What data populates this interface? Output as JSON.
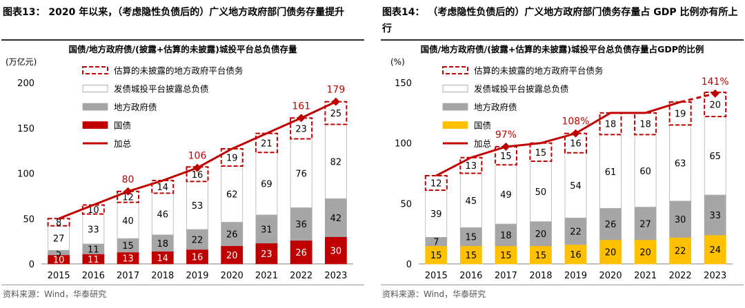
{
  "left": {
    "figure_title": "图表13：  2020 年以来，（考虑隐性负债后的）广义地方政府部门债务存量提升",
    "source": "资料来源：Wind，华泰研究",
    "chart_data": {
      "type": "bar",
      "stacked": true,
      "title": "国债/地方政府债/(披露+估算的未披露)城投平台总负债存量",
      "ylabel": "(万亿元)",
      "ylim": [
        0,
        200
      ],
      "yticks": [
        0,
        50,
        100,
        150,
        200
      ],
      "categories": [
        "2015",
        "2016",
        "2017",
        "2018",
        "2019",
        "2020",
        "2021",
        "2022",
        "2023"
      ],
      "series": [
        {
          "name": "国债",
          "values": [
            10,
            11,
            13,
            14,
            16,
            20,
            23,
            26,
            30
          ],
          "color": "#c00000"
        },
        {
          "name": "地方政府债",
          "values": [
            5,
            11,
            15,
            18,
            22,
            26,
            31,
            36,
            42
          ],
          "color": "#a6a6a6"
        },
        {
          "name": "发债城投平台披露总负债",
          "values": [
            27,
            33,
            40,
            46,
            53,
            62,
            69,
            76,
            82
          ],
          "color": "#ffffff"
        },
        {
          "name": "估算的未披露的地方政府平台债务",
          "values": [
            8,
            10,
            12,
            14,
            16,
            19,
            21,
            23,
            25
          ],
          "color": "#ffffff",
          "dashed": true
        }
      ],
      "total": {
        "name": "加总",
        "values": [
          50,
          65,
          80,
          92,
          106,
          127,
          144,
          161,
          179
        ],
        "labels": [
          "",
          "",
          "80",
          "",
          "106",
          "",
          "",
          "161",
          "179"
        ],
        "color": "#c00000"
      },
      "legend": [
        "估算的未披露的地方政府平台债务",
        "发债城投平台披露总负债",
        "地方政府债",
        "国债",
        "加总"
      ],
      "legend_position": "top-left",
      "grid": false
    }
  },
  "right": {
    "figure_title": "图表14：  （考虑隐性负债后的）广义地方政府部门债务存量占 GDP 比例亦有所上行",
    "source": "资料来源：Wind，华泰研究",
    "chart_data": {
      "type": "bar",
      "stacked": true,
      "title": "国债/地方政府债/(披露+估算的未披露)城投平台总负债存量占GDP的比例",
      "ylabel": "(%)",
      "ylim": [
        0,
        150
      ],
      "yticks": [
        0,
        50,
        100,
        150
      ],
      "categories": [
        "2015",
        "2016",
        "2017",
        "2018",
        "2019",
        "2020",
        "2021",
        "2022",
        "2023"
      ],
      "series": [
        {
          "name": "国债",
          "values": [
            15,
            15,
            15,
            15,
            16,
            20,
            20,
            22,
            24
          ],
          "color": "#ffc000"
        },
        {
          "name": "地方政府债",
          "values": [
            7,
            15,
            18,
            20,
            22,
            26,
            27,
            30,
            33
          ],
          "color": "#a6a6a6"
        },
        {
          "name": "发债城投平台披露总负债",
          "values": [
            39,
            45,
            49,
            50,
            54,
            61,
            60,
            63,
            65
          ],
          "color": "#ffffff"
        },
        {
          "name": "估算的未披露的地方政府平台债务",
          "values": [
            12,
            13,
            15,
            15,
            16,
            18,
            18,
            19,
            20
          ],
          "color": "#ffffff",
          "dashed": true
        }
      ],
      "total": {
        "name": "加总",
        "values": [
          73,
          88,
          97,
          100,
          108,
          125,
          125,
          134,
          141
        ],
        "labels": [
          "",
          "",
          "97%",
          "",
          "108%",
          "",
          "",
          "",
          "141%"
        ],
        "color": "#c00000"
      },
      "legend": [
        "估算的未披露的地方政府平台债务",
        "发债城投平台披露总负债",
        "地方政府债",
        "国债",
        "加总"
      ],
      "legend_position": "top-left",
      "grid": false
    }
  }
}
